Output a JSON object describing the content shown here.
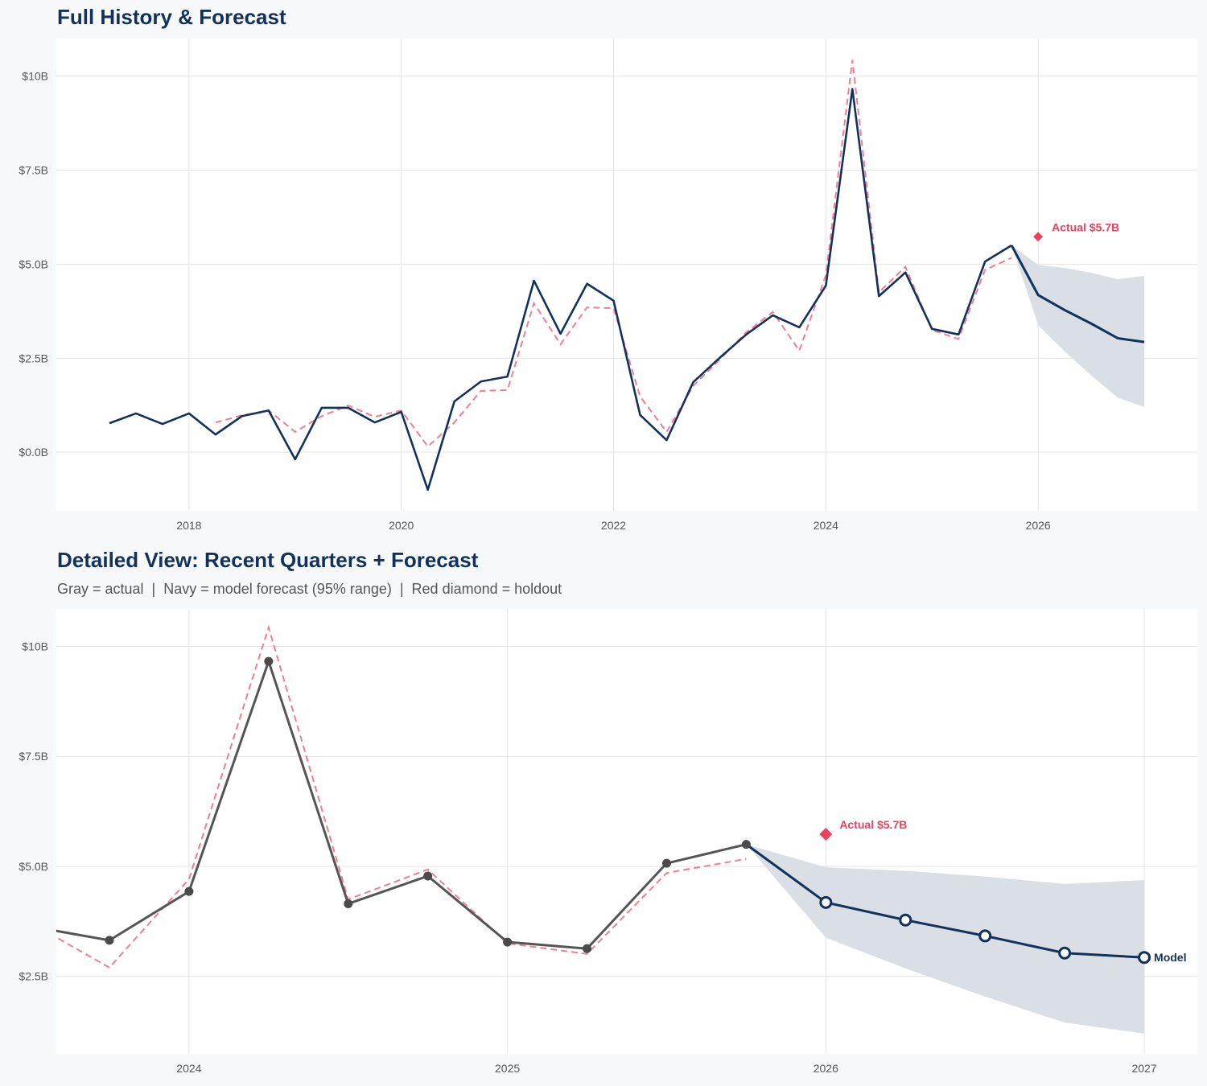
{
  "chart_data": [
    {
      "type": "line",
      "title": "Full History & Forecast",
      "x_ticks": [
        "2018",
        "2020",
        "2022",
        "2024",
        "2026"
      ],
      "y_ticks": [
        "$0.0B",
        "$2.5B",
        "$5.0B",
        "$7.5B",
        "$10B"
      ],
      "y_tick_values": [
        0,
        2.5,
        5,
        7.5,
        10
      ],
      "x_tick_values": [
        2018,
        2020,
        2022,
        2024,
        2026
      ],
      "xlim": [
        "2016-10",
        "2027-07"
      ],
      "ylim": [
        -1.56,
        11.0
      ],
      "grid": true,
      "legend": "none"
    },
    {
      "type": "line",
      "title": "Detailed View: Recent Quarters + Forecast",
      "subtitle": "Gray = actual  |  Navy = model forecast (95% range)  |  Red diamond = holdout",
      "x_ticks": [
        "2024",
        "2025",
        "2026",
        "2027"
      ],
      "x_tick_values": [
        2024,
        2025,
        2026,
        2027
      ],
      "y_ticks": [
        "$2.5B",
        "$5.0B",
        "$7.5B",
        "$10B"
      ],
      "y_tick_values": [
        2.5,
        5,
        7.5,
        10
      ],
      "xlim": [
        "2023-08",
        "2027-03"
      ],
      "ylim": [
        0.74,
        10.85
      ],
      "grid": true,
      "legend": "none",
      "model_label": "Model"
    }
  ],
  "series": {
    "actual": {
      "unit": "$B",
      "dates": [
        "2017-04",
        "2017-07",
        "2017-10",
        "2018-01",
        "2018-04",
        "2018-07",
        "2018-10",
        "2019-01",
        "2019-04",
        "2019-07",
        "2019-10",
        "2020-01",
        "2020-04",
        "2020-07",
        "2020-10",
        "2021-01",
        "2021-04",
        "2021-07",
        "2021-10",
        "2022-01",
        "2022-04",
        "2022-07",
        "2022-10",
        "2023-01",
        "2023-04",
        "2023-07",
        "2023-10",
        "2024-01",
        "2024-04",
        "2024-07",
        "2024-10",
        "2025-01",
        "2025-04",
        "2025-07",
        "2025-10"
      ],
      "values": [
        0.77,
        1.03,
        0.75,
        1.03,
        0.47,
        0.96,
        1.11,
        -0.19,
        1.18,
        1.18,
        0.79,
        1.07,
        -1.0,
        1.35,
        1.88,
        2.01,
        4.56,
        3.15,
        4.48,
        4.03,
        0.99,
        0.32,
        1.86,
        2.51,
        3.13,
        3.64,
        3.32,
        4.43,
        9.66,
        4.15,
        4.78,
        3.28,
        3.13,
        5.07,
        5.5
      ]
    },
    "fitted": {
      "dates": [
        "2018-04",
        "2018-07",
        "2018-10",
        "2019-01",
        "2019-04",
        "2019-07",
        "2019-10",
        "2020-01",
        "2020-04",
        "2020-07",
        "2020-10",
        "2021-01",
        "2021-04",
        "2021-07",
        "2021-10",
        "2022-01",
        "2022-04",
        "2022-07",
        "2022-10",
        "2023-01",
        "2023-04",
        "2023-07",
        "2023-10",
        "2024-01",
        "2024-04",
        "2024-07",
        "2024-10",
        "2025-01",
        "2025-04",
        "2025-07",
        "2025-10"
      ],
      "values": [
        0.79,
        0.98,
        1.11,
        0.54,
        0.96,
        1.24,
        0.94,
        1.11,
        0.15,
        0.79,
        1.63,
        1.65,
        3.96,
        2.87,
        3.85,
        3.83,
        1.48,
        0.54,
        1.76,
        2.46,
        3.19,
        3.73,
        2.7,
        4.71,
        10.43,
        4.25,
        4.93,
        3.25,
        3.01,
        4.85,
        5.17
      ]
    },
    "forecast": {
      "dates": [
        "2026-01",
        "2026-04",
        "2026-07",
        "2026-10",
        "2027-01"
      ],
      "values": [
        4.18,
        3.78,
        3.42,
        3.03,
        2.93
      ],
      "lower": [
        3.38,
        2.68,
        2.04,
        1.45,
        1.2
      ],
      "upper": [
        4.98,
        4.9,
        4.77,
        4.6,
        4.69
      ]
    },
    "holdout": {
      "date": "2026-01",
      "value": 5.73,
      "label": "Actual $5.7B"
    }
  },
  "colors": {
    "navy": "#13325b",
    "red": "#e8425e",
    "fitted": "#ef7e93",
    "actual_gray": "#555555",
    "band": "#d8dde4",
    "grid": "#e3e3e3",
    "panel": "#ffffff",
    "background": "#f7f8fa"
  }
}
